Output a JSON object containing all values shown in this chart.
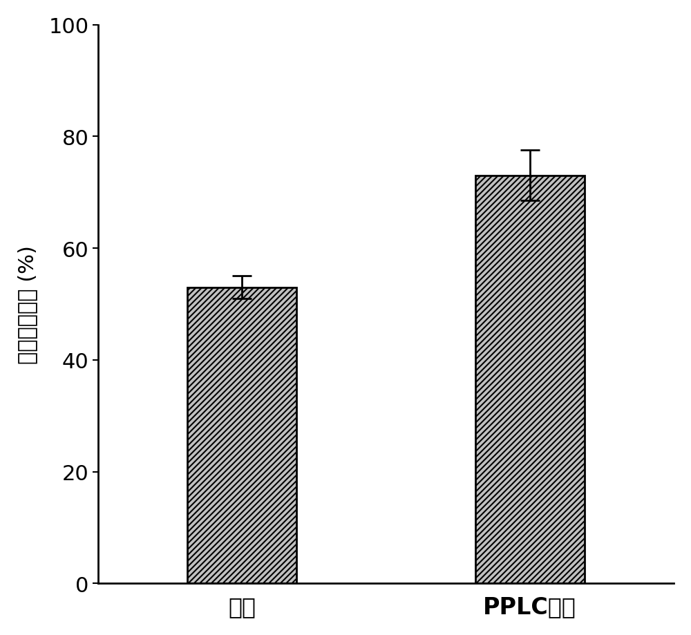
{
  "categories": [
    "对照",
    "PPLC菌剂"
  ],
  "values": [
    53.0,
    73.0
  ],
  "errors": [
    2.0,
    4.5
  ],
  "bar_color": "#c0c0c0",
  "bar_edgecolor": "#000000",
  "hatch_pattern": "////",
  "hatch_color": "#ffffff",
  "ylabel": "蛋白质去除率 (%)",
  "ylim": [
    0,
    100
  ],
  "yticks": [
    0,
    20,
    40,
    60,
    80,
    100
  ],
  "bar_width": 0.38,
  "figsize": [
    10.0,
    9.2
  ],
  "dpi": 100,
  "spine_linewidth": 2.0,
  "tick_labelsize": 22,
  "ylabel_fontsize": 22,
  "xlabel_fontsize": 24,
  "errorbar_capsize": 10,
  "errorbar_linewidth": 2.0,
  "errorbar_color": "#000000",
  "background_color": "#ffffff",
  "xlim": [
    -0.5,
    1.5
  ]
}
